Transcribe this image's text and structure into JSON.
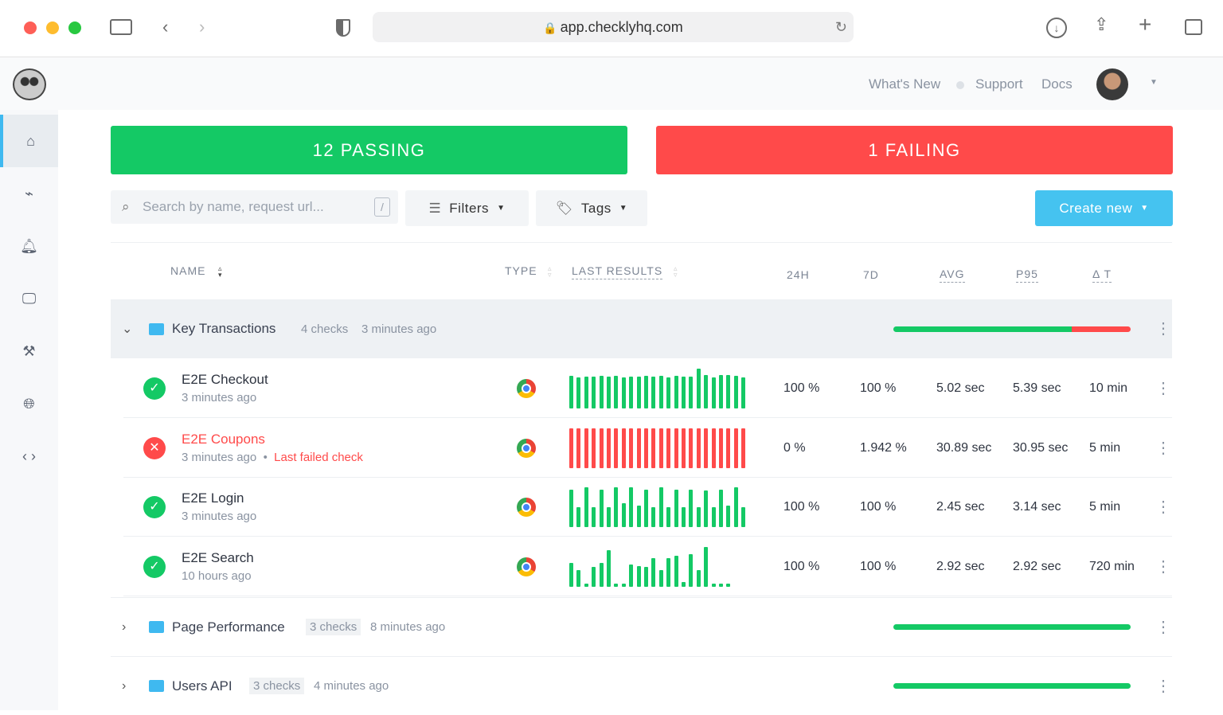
{
  "browser": {
    "url": "app.checklyhq.com"
  },
  "topnav": {
    "whats_new": "What's New",
    "support": "Support",
    "docs": "Docs"
  },
  "sidebar": {
    "items": [
      {
        "name": "home"
      },
      {
        "name": "activity"
      },
      {
        "name": "alerts"
      },
      {
        "name": "monitor"
      },
      {
        "name": "tools"
      },
      {
        "name": "globe"
      },
      {
        "name": "code"
      }
    ]
  },
  "summary": {
    "passing": "12 PASSING",
    "failing": "1 FAILING",
    "passing_color": "#14c965",
    "failing_color": "#ff4a4a"
  },
  "toolbar": {
    "search_placeholder": "Search by name, request url...",
    "search_shortcut": "/",
    "filters": "Filters",
    "tags": "Tags",
    "create_new": "Create new"
  },
  "columns": {
    "name": "NAME",
    "type": "TYPE",
    "last_results": "LAST RESULTS",
    "h24": "24H",
    "d7": "7D",
    "avg": "AVG",
    "p95": "P95",
    "dt": "Δ T"
  },
  "groups": [
    {
      "name": "Key Transactions",
      "checks": "4 checks",
      "updated": "3 minutes ago",
      "expanded": true,
      "pass_fraction": 0.75
    },
    {
      "name": "Page Performance",
      "checks": "3 checks",
      "updated": "8 minutes ago",
      "expanded": false,
      "pass_fraction": 1
    },
    {
      "name": "Users API",
      "checks": "3 checks",
      "updated": "4 minutes ago",
      "expanded": false,
      "pass_fraction": 1
    }
  ],
  "checks": [
    {
      "name": "E2E Checkout",
      "time": "3 minutes ago",
      "status": "passing",
      "failed_label": "",
      "type": "chrome",
      "h24": "100 %",
      "d7": "100 %",
      "avg": "5.02 sec",
      "p95": "5.39 sec",
      "dt": "10 min",
      "results": [
        0.82,
        0.78,
        0.8,
        0.8,
        0.82,
        0.8,
        0.82,
        0.78,
        0.8,
        0.8,
        0.82,
        0.8,
        0.82,
        0.78,
        0.82,
        0.8,
        0.8,
        1,
        0.85,
        0.78,
        0.85,
        0.85,
        0.82,
        0.78
      ]
    },
    {
      "name": "E2E Coupons",
      "time": "3 minutes ago",
      "status": "failing",
      "failed_label": "Last failed check",
      "type": "chrome",
      "h24": "0 %",
      "d7": "1.942 %",
      "avg": "30.89 sec",
      "p95": "30.95 sec",
      "dt": "5 min",
      "results": [
        1,
        1,
        1,
        1,
        1,
        1,
        1,
        1,
        1,
        1,
        1,
        1,
        1,
        1,
        1,
        1,
        1,
        1,
        1,
        1,
        1,
        1,
        1,
        1
      ]
    },
    {
      "name": "E2E Login",
      "time": "3 minutes ago",
      "status": "passing",
      "failed_label": "",
      "type": "chrome",
      "h24": "100 %",
      "d7": "100 %",
      "avg": "2.45 sec",
      "p95": "3.14 sec",
      "dt": "5 min",
      "results": [
        0.95,
        0.5,
        1,
        0.5,
        0.95,
        0.5,
        1,
        0.6,
        1,
        0.55,
        0.95,
        0.5,
        1,
        0.5,
        0.95,
        0.5,
        0.95,
        0.5,
        0.93,
        0.5,
        0.95,
        0.55,
        1,
        0.5
      ]
    },
    {
      "name": "E2E Search",
      "time": "10 hours ago",
      "status": "passing",
      "failed_label": "",
      "type": "chrome",
      "h24": "100 %",
      "d7": "100 %",
      "avg": "2.92 sec",
      "p95": "2.92 sec",
      "dt": "720 min",
      "results": [
        0.6,
        0.42,
        0.08,
        0.5,
        0.6,
        0.92,
        0.08,
        0.08,
        0.55,
        0.52,
        0.5,
        0.72,
        0.42,
        0.72,
        0.78,
        0.12,
        0.82,
        0.42,
        1,
        0.08,
        0.08,
        0.08
      ]
    }
  ]
}
